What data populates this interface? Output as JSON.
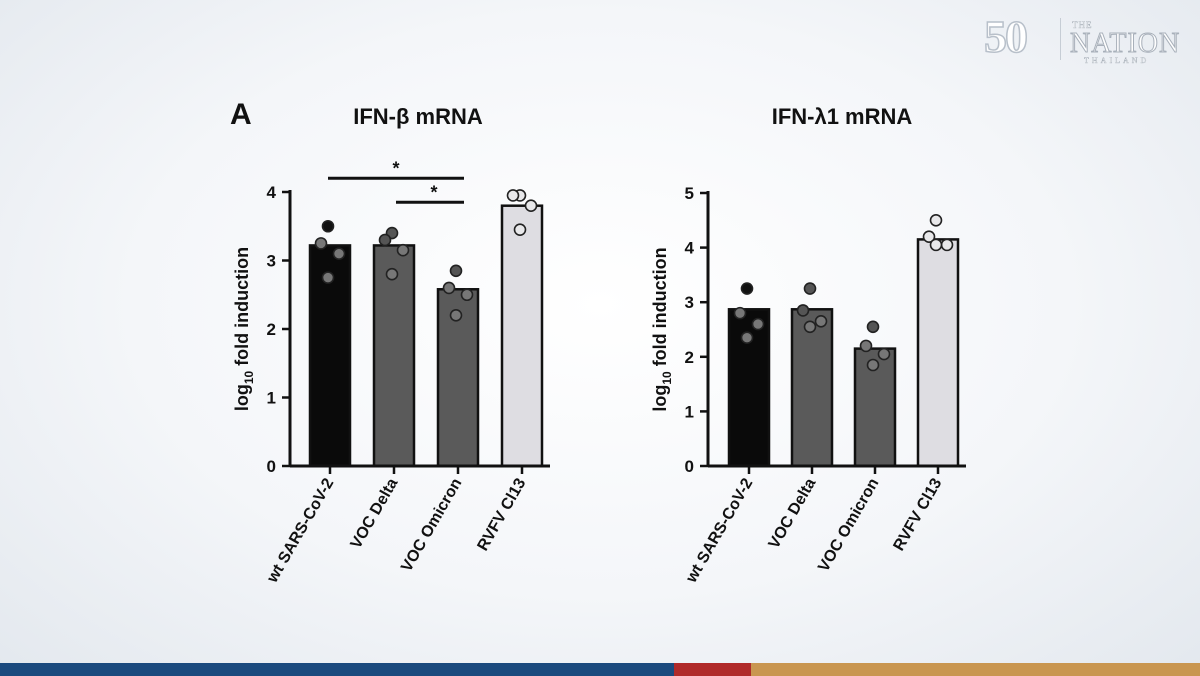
{
  "logo": {
    "anniversary": "50",
    "the": "THE",
    "name": "NATION",
    "country": "THAILAND"
  },
  "panel_label": "A",
  "colors": {
    "footer": [
      "#1b4a7e",
      "#b02a2a",
      "#c99650"
    ]
  },
  "chart_data": [
    {
      "type": "bar",
      "title": "IFN-β mRNA",
      "ylabel": "log",
      "ylabel_subscript": "10",
      "ylabel_suffix": " fold induction",
      "ylim": [
        0,
        4
      ],
      "yticks": [
        "0",
        "1",
        "2",
        "3",
        "4"
      ],
      "categories": [
        "wt SARS-CoV-2",
        "VOC Delta",
        "VOC Omicron",
        "RVFV Cl13"
      ],
      "values": [
        3.22,
        3.22,
        2.58,
        3.8
      ],
      "bar_colors": [
        "#0a0a0a",
        "#5a5a5a",
        "#5a5a5a",
        "#dedde2"
      ],
      "points": [
        [
          3.5,
          3.25,
          3.1,
          2.75
        ],
        [
          3.4,
          3.3,
          3.15,
          2.8
        ],
        [
          2.85,
          2.6,
          2.5,
          2.2
        ],
        [
          3.95,
          3.95,
          3.8,
          3.45
        ]
      ],
      "significance": [
        {
          "from": 0,
          "to": 2,
          "y": 4.2,
          "label": "*"
        },
        {
          "from": 1,
          "to": 2,
          "y": 3.85,
          "label": "*"
        }
      ]
    },
    {
      "type": "bar",
      "title": "IFN-λ1 mRNA",
      "ylabel": "log",
      "ylabel_subscript": "10",
      "ylabel_suffix": " fold induction",
      "ylim": [
        0,
        5
      ],
      "yticks": [
        "0",
        "1",
        "2",
        "3",
        "4",
        "5"
      ],
      "categories": [
        "wt SARS-CoV-2",
        "VOC Delta",
        "VOC Omicron",
        "RVFV Cl13"
      ],
      "values": [
        2.87,
        2.87,
        2.15,
        4.15
      ],
      "bar_colors": [
        "#0a0a0a",
        "#5a5a5a",
        "#5a5a5a",
        "#dedde2"
      ],
      "points": [
        [
          3.25,
          2.8,
          2.6,
          2.35
        ],
        [
          3.25,
          2.85,
          2.65,
          2.55
        ],
        [
          2.55,
          2.2,
          2.05,
          1.85
        ],
        [
          4.5,
          4.2,
          4.05,
          4.05
        ]
      ],
      "significance": []
    }
  ]
}
